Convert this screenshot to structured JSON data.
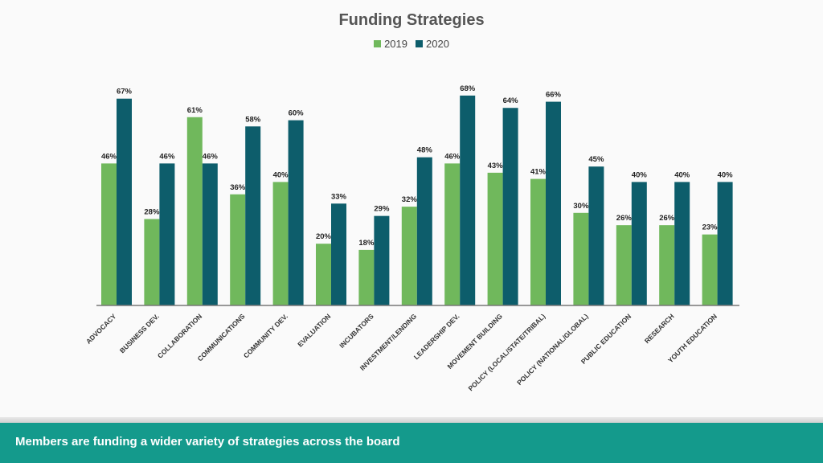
{
  "chart_data": {
    "type": "bar",
    "title": "Funding Strategies",
    "categories": [
      "ADVOCACY",
      "BUSINESS DEV.",
      "COLLABORATION",
      "COMMUNICATIONS",
      "COMMUNITY DEV.",
      "EVALUATION",
      "INCUBATORS",
      "INVESTMENT/LENDING",
      "LEADERSHIP DEV.",
      "MOVEMENT BUILDING",
      "POLICY (LOCAL/STATE/TRIBAL)",
      "POLICY (NATIONAL/GLOBAL)",
      "PUBLIC EDUCATION",
      "RESEARCH",
      "YOUTH EDUCATION"
    ],
    "series": [
      {
        "name": "2019",
        "color": "#70b85c",
        "values": [
          46,
          28,
          61,
          36,
          40,
          20,
          18,
          32,
          46,
          43,
          41,
          30,
          26,
          26,
          23
        ]
      },
      {
        "name": "2020",
        "color": "#0d5d6b",
        "values": [
          67,
          46,
          46,
          58,
          60,
          33,
          29,
          48,
          68,
          64,
          66,
          45,
          40,
          40,
          40
        ]
      }
    ],
    "value_suffix": "%",
    "ylim": [
      0,
      70
    ],
    "grid": false,
    "legend_position": "top-center"
  },
  "footer": {
    "text": "Members are funding a wider variety of strategies across the board",
    "color": "#149a8c"
  }
}
